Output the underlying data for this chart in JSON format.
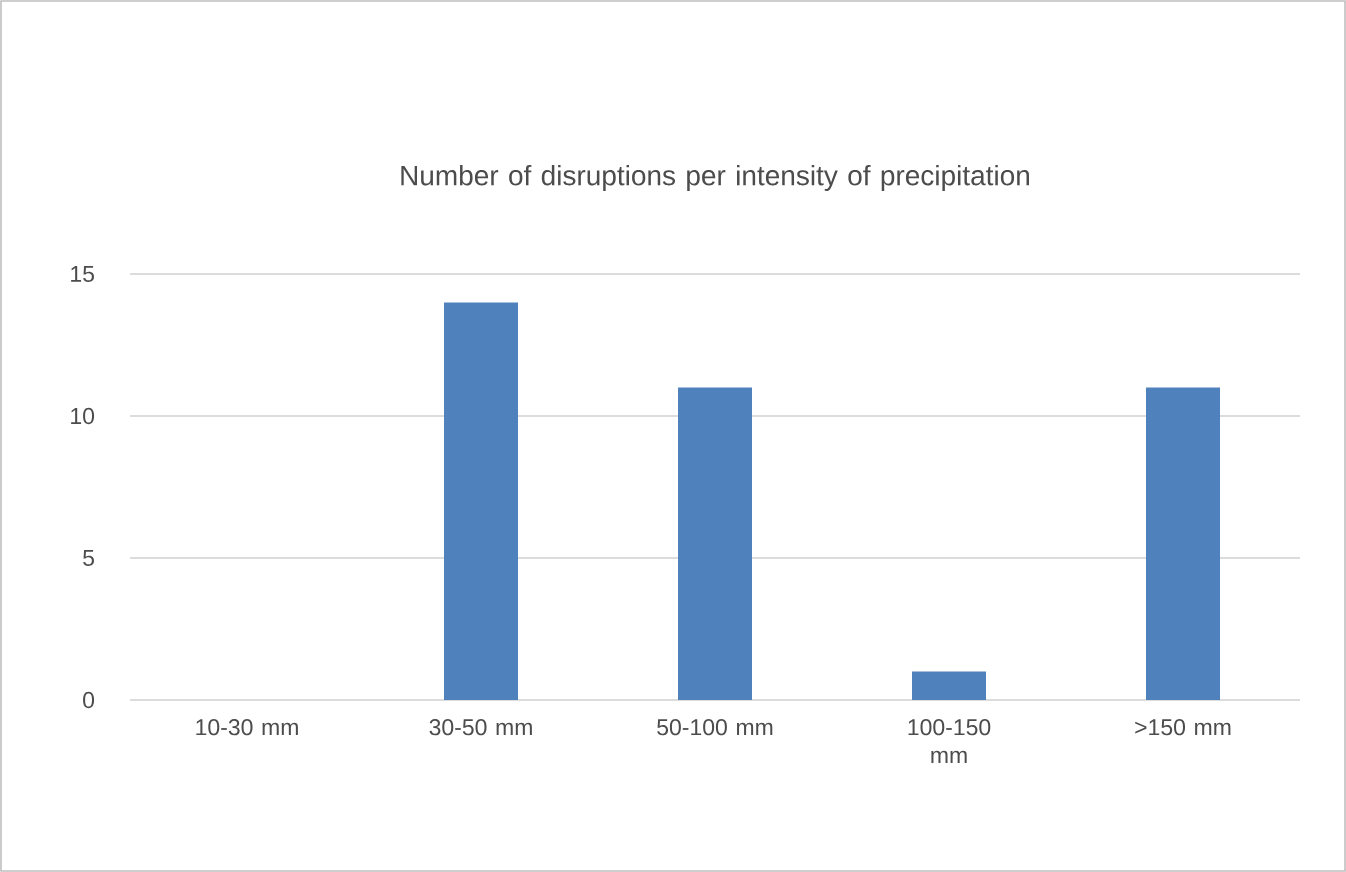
{
  "chart_data": {
    "type": "bar",
    "title": "Number of disruptions per intensity of precipitation",
    "categories": [
      "10-30 mm",
      "30-50 mm",
      "50-100 mm",
      "100-150 mm",
      ">150 mm"
    ],
    "values": [
      0,
      14,
      11,
      1,
      11
    ],
    "color": "#4f81bd",
    "ylim": [
      0,
      15
    ],
    "yticks": [
      0,
      5,
      10,
      15
    ],
    "grid": "y"
  }
}
